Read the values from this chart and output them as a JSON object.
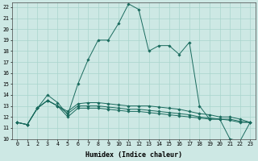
{
  "xlabel": "Humidex (Indice chaleur)",
  "bg_color": "#cde8e4",
  "grid_color": "#a8d5cc",
  "line_color": "#1a6b5e",
  "x_values": [
    0,
    1,
    2,
    3,
    4,
    5,
    6,
    7,
    8,
    9,
    10,
    11,
    12,
    13,
    14,
    15,
    16,
    17,
    18,
    19,
    20,
    21,
    22,
    23
  ],
  "series": [
    [
      11.5,
      11.3,
      12.8,
      14.0,
      13.3,
      12.2,
      15.0,
      17.2,
      19.0,
      19.0,
      20.5,
      22.3,
      21.8,
      18.0,
      18.5,
      18.5,
      17.7,
      18.8,
      13.0,
      11.8,
      11.8,
      10.0,
      9.8,
      11.5
    ],
    [
      11.5,
      11.3,
      12.8,
      13.5,
      13.0,
      12.5,
      13.2,
      13.3,
      13.3,
      13.2,
      13.1,
      13.0,
      13.0,
      13.0,
      12.9,
      12.8,
      12.7,
      12.5,
      12.3,
      12.2,
      12.0,
      12.0,
      11.8,
      11.5
    ],
    [
      11.5,
      11.3,
      12.8,
      13.5,
      13.0,
      12.3,
      13.0,
      13.0,
      13.0,
      12.9,
      12.8,
      12.7,
      12.7,
      12.6,
      12.5,
      12.4,
      12.3,
      12.2,
      12.0,
      11.9,
      11.8,
      11.8,
      11.6,
      11.5
    ],
    [
      11.5,
      11.3,
      12.8,
      13.5,
      13.0,
      12.0,
      12.8,
      12.8,
      12.8,
      12.7,
      12.6,
      12.5,
      12.5,
      12.4,
      12.3,
      12.2,
      12.1,
      12.0,
      11.9,
      11.8,
      11.8,
      11.7,
      11.5,
      11.5
    ]
  ],
  "ylim": [
    10,
    22.4
  ],
  "xlim": [
    -0.5,
    23.5
  ],
  "yticks": [
    10,
    11,
    12,
    13,
    14,
    15,
    16,
    17,
    18,
    19,
    20,
    21,
    22
  ],
  "xticks": [
    0,
    1,
    2,
    3,
    4,
    5,
    6,
    7,
    8,
    9,
    10,
    11,
    12,
    13,
    14,
    15,
    16,
    17,
    18,
    19,
    20,
    21,
    22,
    23
  ],
  "tick_fontsize": 4.8,
  "label_fontsize": 6.0
}
